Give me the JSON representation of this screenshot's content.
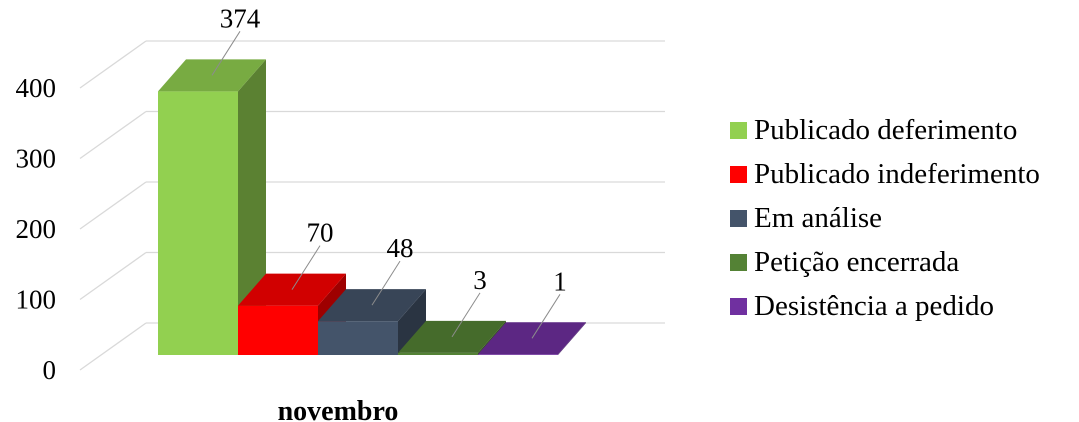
{
  "chart_data": {
    "type": "bar",
    "categories": [
      "novembro"
    ],
    "series": [
      {
        "name": "Publicado deferimento",
        "values": [
          374
        ],
        "color": "#92D050"
      },
      {
        "name": "Publicado indeferimento",
        "values": [
          70
        ],
        "color": "#FF0000"
      },
      {
        "name": "Em análise",
        "values": [
          48
        ],
        "color": "#44546A"
      },
      {
        "name": "Petição encerrada",
        "values": [
          3
        ],
        "color": "#548235"
      },
      {
        "name": "Desistência a pedido",
        "values": [
          1
        ],
        "color": "#7030A0"
      }
    ],
    "data_labels": [
      "374",
      "70",
      "48",
      "3",
      "1"
    ],
    "yticks": [
      "0",
      "100",
      "200",
      "300",
      "400"
    ],
    "ylim": [
      0,
      400
    ],
    "grid": true,
    "three_d": true,
    "legend_position": "right"
  }
}
